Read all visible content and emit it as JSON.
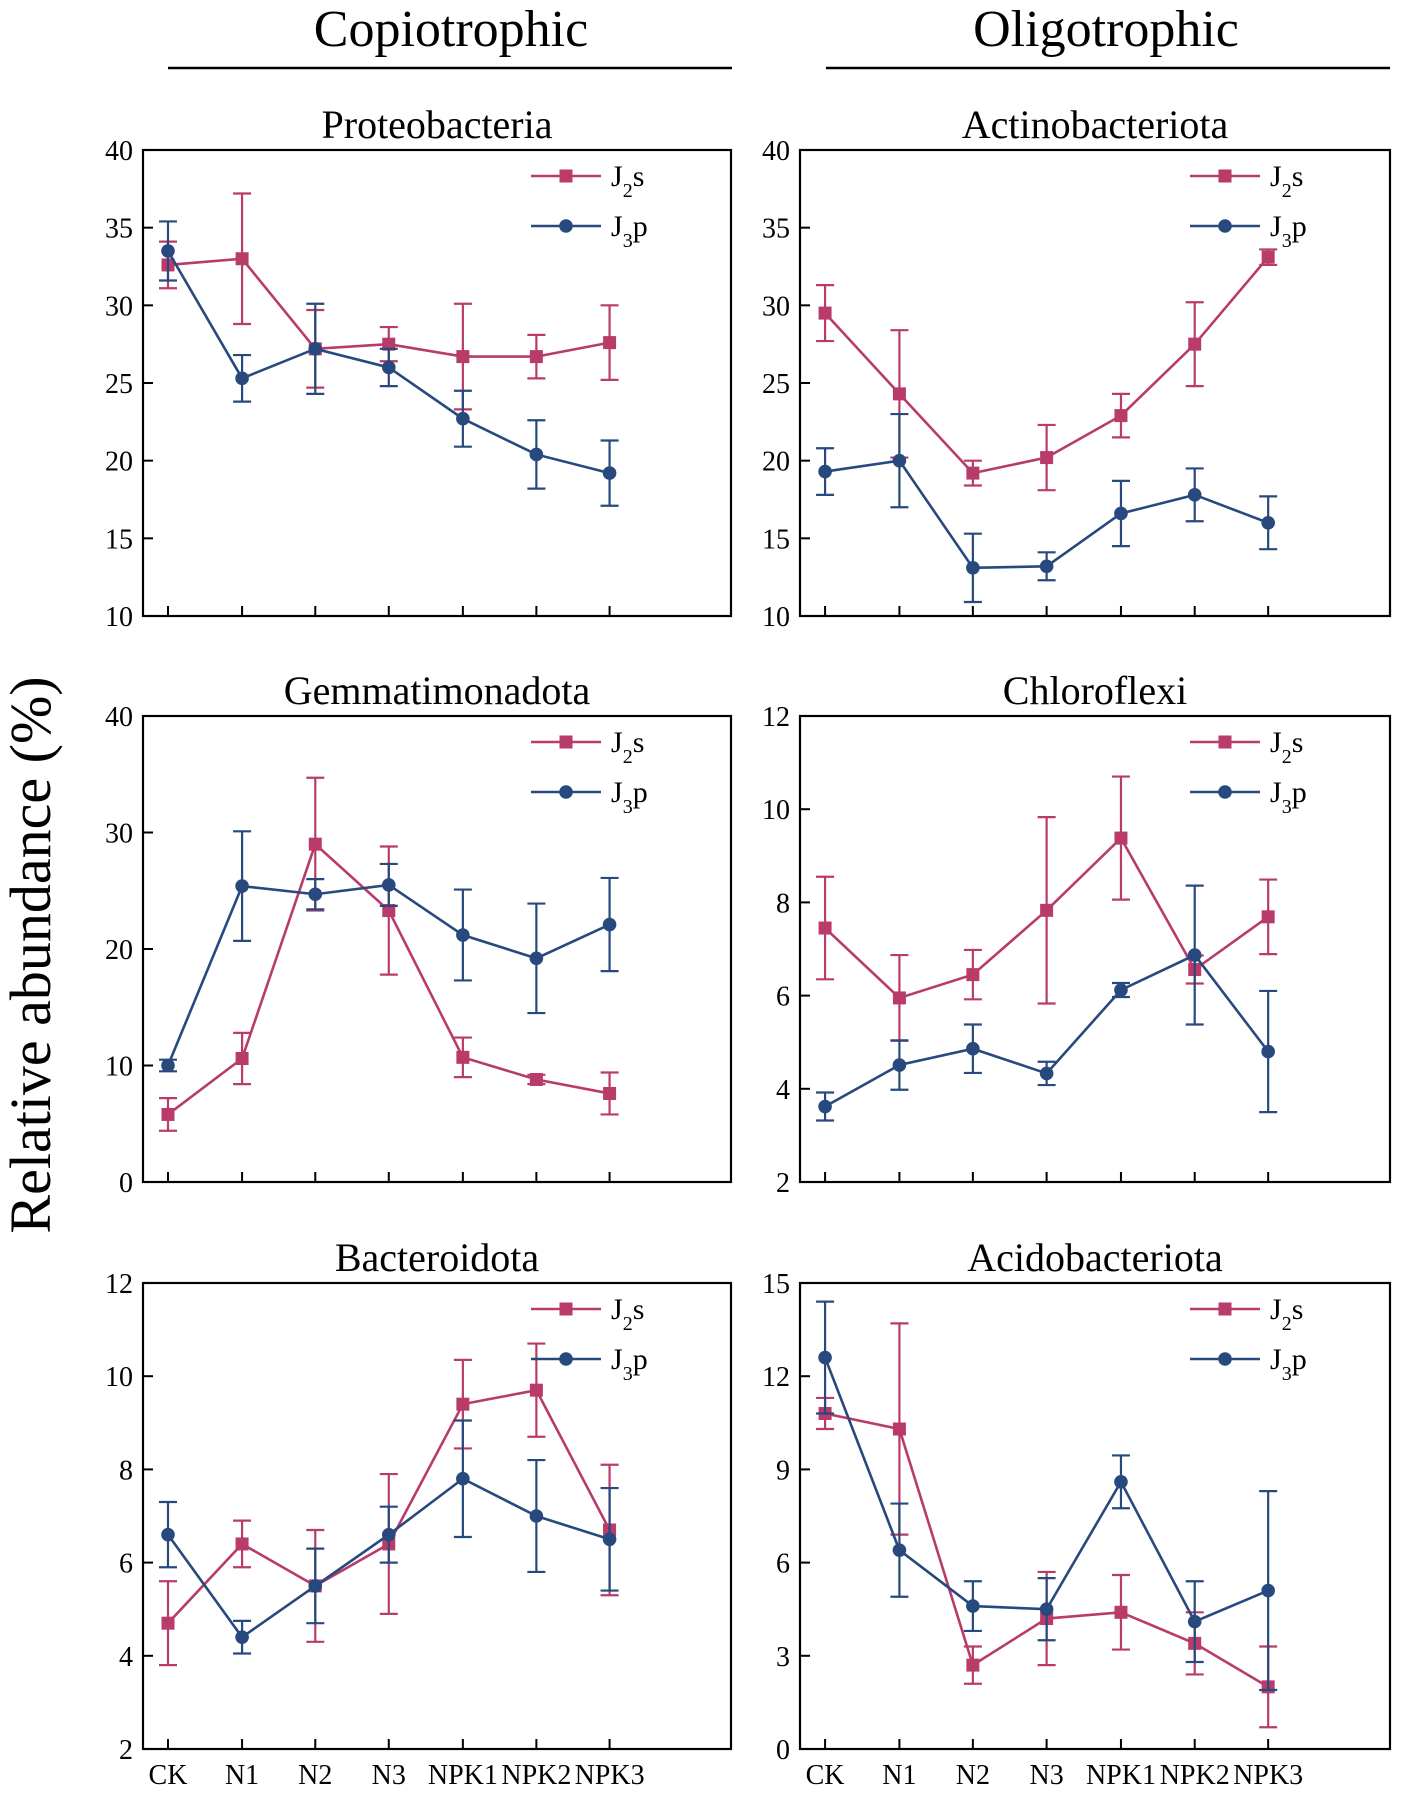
{
  "group_titles": {
    "left": "Copiotrophic",
    "right": "Oligotrophic"
  },
  "shared_ylabel": "Relative abundance (%)",
  "categories": [
    "CK",
    "N1",
    "N2",
    "N3",
    "NPK1",
    "NPK2",
    "NPK3"
  ],
  "x_tick_labels": [
    "CK",
    "N1",
    "N2",
    "N3",
    "NPK1",
    "NPK2",
    "NPK3"
  ],
  "series_styles": [
    {
      "name": "J2s",
      "base": "J",
      "sub": "2",
      "suffix": "s",
      "color": "#b83b6a",
      "marker": "square"
    },
    {
      "name": "J3p",
      "base": "J",
      "sub": "3",
      "suffix": "p",
      "color": "#27497e",
      "marker": "circle"
    }
  ],
  "chart_data": [
    {
      "type": "line",
      "title": "Proteobacteria",
      "group": "Copiotrophic",
      "ylim": [
        10,
        40
      ],
      "yticks": [
        "10",
        "15",
        "20",
        "25",
        "30",
        "35",
        "40"
      ],
      "ytick_values": [
        10,
        15,
        20,
        25,
        30,
        35,
        40
      ],
      "series": [
        {
          "name": "J2s",
          "values": [
            32.6,
            33.0,
            27.2,
            27.5,
            26.7,
            26.7,
            27.6
          ],
          "errors": [
            1.5,
            4.2,
            2.5,
            1.1,
            3.4,
            1.4,
            2.4
          ]
        },
        {
          "name": "J3p",
          "values": [
            33.5,
            25.3,
            27.2,
            26.0,
            22.7,
            20.4,
            19.2
          ],
          "errors": [
            1.9,
            1.5,
            2.9,
            1.2,
            1.8,
            2.2,
            2.1
          ]
        }
      ]
    },
    {
      "type": "line",
      "title": "Actinobacteriota",
      "group": "Oligotrophic",
      "ylim": [
        10,
        40
      ],
      "yticks": [
        "10",
        "15",
        "20",
        "25",
        "30",
        "35",
        "40"
      ],
      "ytick_values": [
        10,
        15,
        20,
        25,
        30,
        35,
        40
      ],
      "series": [
        {
          "name": "J2s",
          "values": [
            29.5,
            24.3,
            19.2,
            20.2,
            22.9,
            27.5,
            33.1
          ],
          "errors": [
            1.8,
            4.1,
            0.8,
            2.1,
            1.4,
            2.7,
            0.5
          ]
        },
        {
          "name": "J3p",
          "values": [
            19.3,
            20.0,
            13.1,
            13.2,
            16.6,
            17.8,
            16.0
          ],
          "errors": [
            1.5,
            3.0,
            2.2,
            0.9,
            2.1,
            1.7,
            1.7
          ]
        }
      ]
    },
    {
      "type": "line",
      "title": "Gemmatimonadota",
      "group": "Copiotrophic",
      "ylim": [
        0,
        40
      ],
      "yticks": [
        "0",
        "10",
        "20",
        "30",
        "40"
      ],
      "ytick_values": [
        0,
        10,
        20,
        30,
        40
      ],
      "series": [
        {
          "name": "J2s",
          "values": [
            5.8,
            10.6,
            29.0,
            23.3,
            10.7,
            8.8,
            7.6
          ],
          "errors": [
            1.4,
            2.2,
            5.7,
            5.5,
            1.7,
            0.4,
            1.8
          ]
        },
        {
          "name": "J3p",
          "values": [
            10.0,
            25.4,
            24.7,
            25.5,
            21.2,
            19.2,
            22.1
          ],
          "errors": [
            0.5,
            4.7,
            1.3,
            1.8,
            3.9,
            4.7,
            4.0
          ]
        }
      ]
    },
    {
      "type": "line",
      "title": "Chloroflexi",
      "group": "Oligotrophic",
      "ylim": [
        2,
        12
      ],
      "yticks": [
        "2",
        "4",
        "6",
        "8",
        "10",
        "12"
      ],
      "ytick_values": [
        2,
        4,
        6,
        8,
        10,
        12
      ],
      "series": [
        {
          "name": "J2s",
          "values": [
            7.45,
            5.95,
            6.45,
            7.83,
            9.38,
            6.56,
            7.69
          ],
          "errors": [
            1.1,
            0.92,
            0.53,
            2.0,
            1.32,
            0.3,
            0.8
          ]
        },
        {
          "name": "J3p",
          "values": [
            3.62,
            4.51,
            4.86,
            4.33,
            6.12,
            6.87,
            4.8
          ],
          "errors": [
            0.3,
            0.53,
            0.52,
            0.25,
            0.15,
            1.49,
            1.3
          ]
        }
      ]
    },
    {
      "type": "line",
      "title": "Bacteroidota",
      "group": "Copiotrophic",
      "ylim": [
        2,
        12
      ],
      "yticks": [
        "2",
        "4",
        "6",
        "8",
        "10",
        "12"
      ],
      "ytick_values": [
        2,
        4,
        6,
        8,
        10,
        12
      ],
      "series": [
        {
          "name": "J2s",
          "values": [
            4.7,
            6.4,
            5.5,
            6.4,
            9.4,
            9.7,
            6.7
          ],
          "errors": [
            0.9,
            0.5,
            1.2,
            1.5,
            0.95,
            1.0,
            1.4
          ]
        },
        {
          "name": "J3p",
          "values": [
            6.6,
            4.4,
            5.5,
            6.6,
            7.8,
            7.0,
            6.5
          ],
          "errors": [
            0.7,
            0.35,
            0.8,
            0.6,
            1.25,
            1.2,
            1.1
          ]
        }
      ]
    },
    {
      "type": "line",
      "title": "Acidobacteriota",
      "group": "Oligotrophic",
      "ylim": [
        0,
        15
      ],
      "yticks": [
        "0",
        "3",
        "6",
        "9",
        "12",
        "15"
      ],
      "ytick_values": [
        0,
        3,
        6,
        9,
        12,
        15
      ],
      "series": [
        {
          "name": "J2s",
          "values": [
            10.8,
            10.3,
            2.7,
            4.2,
            4.4,
            3.4,
            2.0
          ],
          "errors": [
            0.5,
            3.4,
            0.6,
            1.5,
            1.2,
            1.0,
            1.3
          ]
        },
        {
          "name": "J3p",
          "values": [
            12.6,
            6.4,
            4.6,
            4.5,
            8.6,
            4.1,
            5.1
          ],
          "errors": [
            1.8,
            1.5,
            0.8,
            1.0,
            0.85,
            1.3,
            3.2
          ]
        }
      ]
    }
  ]
}
